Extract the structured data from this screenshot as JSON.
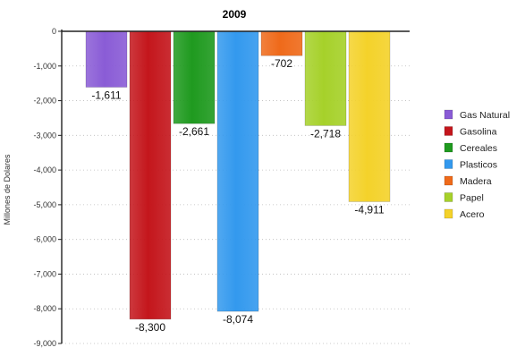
{
  "chart_data": {
    "type": "bar",
    "title": "2009",
    "ylabel": "Millones de Dolares",
    "xlabel": "",
    "ylim": [
      -9000,
      0
    ],
    "yticks": [
      0,
      -1000,
      -2000,
      -3000,
      -4000,
      -5000,
      -6000,
      -7000,
      -8000,
      -9000
    ],
    "ytick_labels": [
      "0",
      "-1,000",
      "-2,000",
      "-3,000",
      "-4,000",
      "-5,000",
      "-6,000",
      "-7,000",
      "-8,000",
      "-9,000"
    ],
    "grid": true,
    "legend_position": "right",
    "series": [
      {
        "name": "Gas Natural",
        "value": -1611,
        "label": "-1,611",
        "color": "#8a5cd6"
      },
      {
        "name": "Gasolina",
        "value": -8300,
        "label": "-8,300",
        "color": "#c4161c"
      },
      {
        "name": "Cereales",
        "value": -2661,
        "label": "-2,661",
        "color": "#1f9a1f"
      },
      {
        "name": "Plasticos",
        "value": -8074,
        "label": "-8,074",
        "color": "#3399ee"
      },
      {
        "name": "Madera",
        "value": -702,
        "label": "-702",
        "color": "#ef6a1a"
      },
      {
        "name": "Papel",
        "value": -2718,
        "label": "-2,718",
        "color": "#a6d12a"
      },
      {
        "name": "Acero",
        "value": -4911,
        "label": "-4,911",
        "color": "#f4d22a"
      }
    ]
  }
}
